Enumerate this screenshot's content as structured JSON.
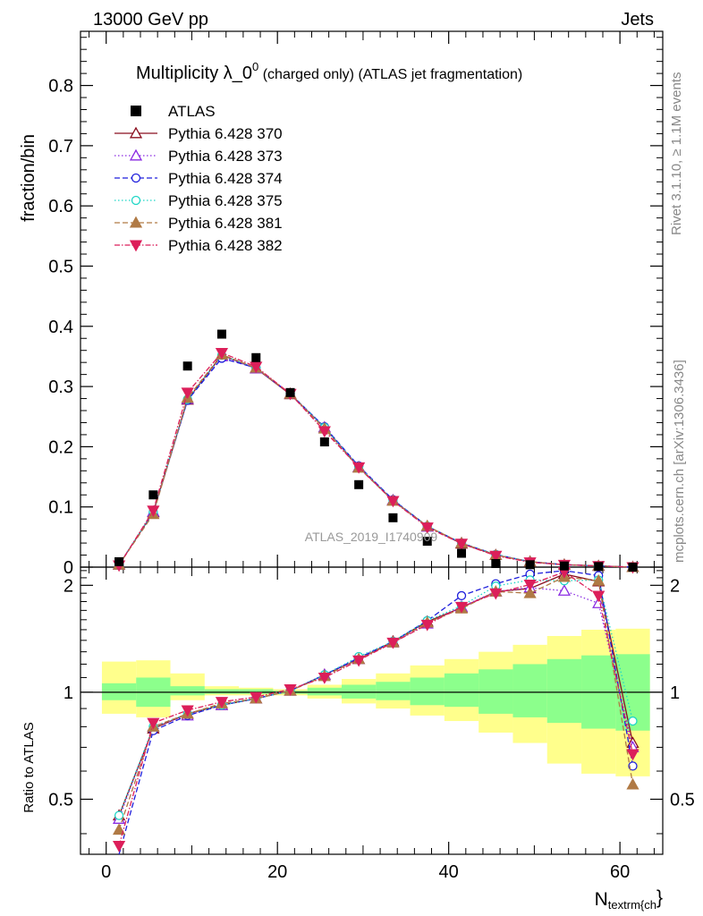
{
  "header": {
    "left": "13000 GeV pp",
    "right": "Jets",
    "rivet": "Rivet 3.1.10, ≥ 1.1M events",
    "mcplots": "mcplots.cern.ch [arXiv:1306.3436]",
    "watermark": "ATLAS_2019_I1740909"
  },
  "chart_data": [
    {
      "type": "scatter",
      "title_main": "Multiplicity λ_0",
      "title_sup": "0",
      "title_sub": " (charged only) (ATLAS jet fragmentation)",
      "ylabel": "fraction/bin",
      "xlim": [
        -3,
        65
      ],
      "ylim": [
        0,
        0.89
      ],
      "yticks": [
        0,
        0.1,
        0.2,
        0.3,
        0.4,
        0.5,
        0.6,
        0.7,
        0.8
      ],
      "yticklabels": [
        "0",
        "0.1",
        "0.2",
        "0.3",
        "0.4",
        "0.5",
        "0.6",
        "0.7",
        "0.8"
      ],
      "x": [
        1.5,
        5.5,
        9.5,
        13.5,
        17.5,
        21.5,
        25.5,
        29.5,
        33.5,
        37.5,
        41.5,
        45.5,
        49.5,
        53.5,
        57.5,
        61.5
      ],
      "data": {
        "name": "ATLAS",
        "color": "#000000",
        "values": [
          0.009,
          0.12,
          0.334,
          0.387,
          0.348,
          0.29,
          0.208,
          0.137,
          0.082,
          0.043,
          0.023,
          0.006,
          0.004,
          0.002,
          0.001,
          0.0
        ]
      },
      "series": [
        {
          "name": "Pythia 6.428 370",
          "color": "#8b0f1f",
          "marker": "triangle-open",
          "dash": "",
          "values": [
            0.004,
            0.091,
            0.278,
            0.352,
            0.33,
            0.287,
            0.232,
            0.166,
            0.111,
            0.068,
            0.039,
            0.02,
            0.009,
            0.004,
            0.002,
            0.0
          ]
        },
        {
          "name": "Pythia 6.428 373",
          "color": "#8a2be2",
          "marker": "triangle-open",
          "dash": "1.5,2.5",
          "values": [
            0.004,
            0.092,
            0.279,
            0.35,
            0.33,
            0.288,
            0.232,
            0.166,
            0.111,
            0.067,
            0.04,
            0.02,
            0.009,
            0.004,
            0.002,
            0.0
          ]
        },
        {
          "name": "Pythia 6.428 374",
          "color": "#1f1fdc",
          "marker": "circle-open",
          "dash": "6,3",
          "values": [
            0.004,
            0.09,
            0.277,
            0.347,
            0.331,
            0.288,
            0.233,
            0.168,
            0.112,
            0.068,
            0.04,
            0.021,
            0.009,
            0.004,
            0.002,
            0.0
          ]
        },
        {
          "name": "Pythia 6.428 375",
          "color": "#1fd6c6",
          "marker": "circle-open",
          "dash": "1.5,2.5",
          "values": [
            0.004,
            0.092,
            0.279,
            0.352,
            0.331,
            0.288,
            0.232,
            0.167,
            0.111,
            0.068,
            0.04,
            0.021,
            0.009,
            0.004,
            0.002,
            0.0
          ]
        },
        {
          "name": "Pythia 6.428 381",
          "color": "#b07a45",
          "marker": "triangle-filled",
          "dash": "6,3",
          "values": [
            0.004,
            0.088,
            0.281,
            0.353,
            0.331,
            0.288,
            0.23,
            0.165,
            0.11,
            0.068,
            0.04,
            0.02,
            0.009,
            0.004,
            0.002,
            0.0
          ]
        },
        {
          "name": "Pythia 6.428 382",
          "color": "#dc1f5a",
          "marker": "triangledown-filled",
          "dash": "6,2,1.5,2",
          "values": [
            0.003,
            0.094,
            0.29,
            0.356,
            0.333,
            0.288,
            0.226,
            0.166,
            0.11,
            0.066,
            0.039,
            0.019,
            0.008,
            0.004,
            0.002,
            0.0
          ]
        }
      ]
    },
    {
      "type": "line",
      "ylabel": "Ratio to ATLAS",
      "xlabel_main": "N",
      "xlabel_sub": "textrm{ch",
      "xlabel_tail": "}",
      "xlim": [
        -3,
        65
      ],
      "ylim": [
        0.35,
        2.25
      ],
      "xticks": [
        0,
        20,
        40,
        60
      ],
      "xticklabels": [
        "0",
        "20",
        "40",
        "60"
      ],
      "yticks": [
        0.5,
        1,
        2
      ],
      "yticklabels": [
        "0.5",
        "1",
        "2"
      ],
      "band_yellow": [
        [
          0.87,
          1.22
        ],
        [
          0.85,
          1.23
        ],
        [
          0.95,
          1.13
        ],
        [
          0.98,
          1.04
        ],
        [
          0.98,
          1.03
        ],
        [
          0.98,
          1.02
        ],
        [
          0.96,
          1.05
        ],
        [
          0.93,
          1.09
        ],
        [
          0.9,
          1.13
        ],
        [
          0.86,
          1.19
        ],
        [
          0.83,
          1.24
        ],
        [
          0.77,
          1.3
        ],
        [
          0.72,
          1.36
        ],
        [
          0.63,
          1.44
        ],
        [
          0.59,
          1.5
        ],
        [
          0.58,
          1.51
        ]
      ],
      "band_green": [
        [
          0.95,
          1.06
        ],
        [
          0.91,
          1.1
        ],
        [
          0.98,
          1.04
        ],
        [
          0.99,
          1.02
        ],
        [
          0.99,
          1.02
        ],
        [
          0.99,
          1.01
        ],
        [
          0.98,
          1.03
        ],
        [
          0.96,
          1.05
        ],
        [
          0.95,
          1.07
        ],
        [
          0.92,
          1.1
        ],
        [
          0.91,
          1.13
        ],
        [
          0.87,
          1.16
        ],
        [
          0.85,
          1.2
        ],
        [
          0.82,
          1.24
        ],
        [
          0.79,
          1.27
        ],
        [
          0.78,
          1.28
        ]
      ],
      "series": [
        {
          "name": "Pythia 6.428 370",
          "values": [
            0.45,
            0.79,
            0.87,
            0.92,
            0.96,
            1.01,
            1.12,
            1.24,
            1.39,
            1.58,
            1.73,
            1.92,
            1.96,
            2.15,
            2.05,
            0.72
          ]
        },
        {
          "name": "Pythia 6.428 373",
          "values": [
            0.44,
            0.8,
            0.86,
            0.92,
            0.96,
            1.01,
            1.12,
            1.24,
            1.38,
            1.56,
            1.74,
            1.92,
            1.97,
            1.93,
            1.78,
            0.7
          ]
        },
        {
          "name": "Pythia 6.428 374",
          "values": [
            0.33,
            0.78,
            0.86,
            0.92,
            0.96,
            1.01,
            1.12,
            1.25,
            1.39,
            1.59,
            1.87,
            2.02,
            2.15,
            2.2,
            2.13,
            0.62
          ]
        },
        {
          "name": "Pythia 6.428 375",
          "values": [
            0.45,
            0.8,
            0.87,
            0.92,
            0.96,
            1.01,
            1.12,
            1.26,
            1.39,
            1.59,
            1.75,
            1.99,
            2.07,
            2.06,
            2.07,
            0.83
          ]
        },
        {
          "name": "Pythia 6.428 381",
          "values": [
            0.41,
            0.8,
            0.87,
            0.93,
            0.96,
            1.01,
            1.11,
            1.24,
            1.38,
            1.57,
            1.72,
            1.92,
            1.9,
            2.11,
            2.06,
            0.55
          ]
        },
        {
          "name": "Pythia 6.428 382",
          "values": [
            0.37,
            0.82,
            0.89,
            0.94,
            0.97,
            1.02,
            1.1,
            1.23,
            1.38,
            1.55,
            1.74,
            1.9,
            2.01,
            2.18,
            1.87,
            0.67
          ]
        }
      ]
    }
  ]
}
